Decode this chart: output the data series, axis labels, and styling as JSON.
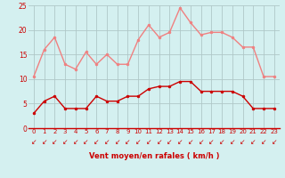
{
  "hours": [
    0,
    1,
    2,
    3,
    4,
    5,
    6,
    7,
    8,
    9,
    10,
    11,
    12,
    13,
    14,
    15,
    16,
    17,
    18,
    19,
    20,
    21,
    22,
    23
  ],
  "rafales": [
    10.5,
    16,
    18.5,
    13,
    12,
    15.5,
    13,
    15,
    13,
    13,
    18,
    21,
    18.5,
    19.5,
    24.5,
    21.5,
    19,
    19.5,
    19.5,
    18.5,
    16.5,
    16.5,
    10.5,
    10.5
  ],
  "moyen": [
    3,
    5.5,
    6.5,
    4,
    4,
    4,
    6.5,
    5.5,
    5.5,
    6.5,
    6.5,
    8,
    8.5,
    8.5,
    9.5,
    9.5,
    7.5,
    7.5,
    7.5,
    7.5,
    6.5,
    4,
    4,
    4
  ],
  "rafales_color": "#f08080",
  "moyen_color": "#cc0000",
  "bg_color": "#d4f0f0",
  "grid_color": "#b0c8c8",
  "xlabel": "Vent moyen/en rafales ( km/h )",
  "xlabel_color": "#cc0000",
  "tick_color": "#cc0000",
  "arrow_color": "#cc0000",
  "ylim": [
    0,
    25
  ],
  "yticks": [
    0,
    5,
    10,
    15,
    20,
    25
  ],
  "arrow_char": "↙"
}
